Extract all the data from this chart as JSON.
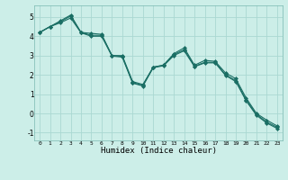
{
  "title": "",
  "xlabel": "Humidex (Indice chaleur)",
  "bg_color": "#cceee8",
  "grid_color": "#aad8d2",
  "line_color": "#1a6e64",
  "marker": "D",
  "markersize": 2.0,
  "linewidth": 0.8,
  "xlim": [
    -0.5,
    23.5
  ],
  "ylim": [
    -1.4,
    5.6
  ],
  "xticks": [
    0,
    1,
    2,
    3,
    4,
    5,
    6,
    7,
    8,
    9,
    10,
    11,
    12,
    13,
    14,
    15,
    16,
    17,
    18,
    19,
    20,
    21,
    22,
    23
  ],
  "yticks": [
    -1,
    0,
    1,
    2,
    3,
    4,
    5
  ],
  "series1": [
    4.2,
    4.5,
    4.8,
    5.1,
    4.2,
    4.15,
    4.1,
    3.0,
    3.0,
    1.65,
    1.5,
    2.4,
    2.5,
    3.1,
    3.4,
    2.5,
    2.75,
    2.7,
    2.1,
    1.8,
    0.8,
    0.0,
    -0.35,
    -0.65
  ],
  "series2": [
    4.2,
    4.5,
    4.75,
    5.05,
    4.2,
    4.05,
    4.05,
    3.0,
    2.95,
    1.6,
    1.45,
    2.4,
    2.5,
    3.05,
    3.3,
    2.45,
    2.65,
    2.65,
    2.0,
    1.7,
    0.7,
    -0.05,
    -0.45,
    -0.72
  ],
  "series3": [
    4.2,
    4.5,
    4.7,
    4.95,
    4.18,
    4.0,
    4.0,
    2.97,
    2.92,
    1.57,
    1.42,
    2.37,
    2.47,
    3.0,
    3.25,
    2.42,
    2.62,
    2.62,
    1.97,
    1.65,
    0.65,
    -0.1,
    -0.5,
    -0.78
  ]
}
